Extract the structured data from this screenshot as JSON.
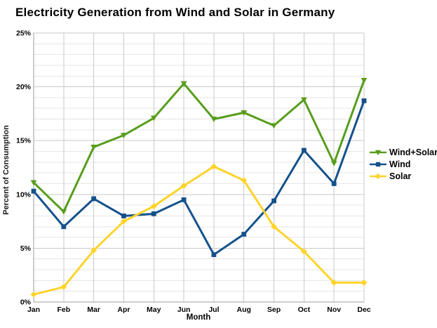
{
  "chart_data": {
    "type": "line",
    "title": "Electricity Generation from Wind and Solar in Germany",
    "xlabel": "Month",
    "ylabel": "Percent of Consumption",
    "categories": [
      "Jan",
      "Feb",
      "Mar",
      "Apr",
      "May",
      "Jun",
      "Jul",
      "Aug",
      "Sep",
      "Oct",
      "Nov",
      "Dec"
    ],
    "y_ticks": [
      "0%",
      "5%",
      "10%",
      "15%",
      "20%",
      "25%"
    ],
    "ylim": [
      0,
      25
    ],
    "y_major_step": 5,
    "y_minor_step": 1,
    "grid": "on",
    "legend_position": "right",
    "series": [
      {
        "name": "Wind+Solar",
        "color": "#579D1C",
        "marker": "triangle",
        "values": [
          11.1,
          8.4,
          14.4,
          15.5,
          17.1,
          20.3,
          17.0,
          17.6,
          16.4,
          18.8,
          12.9,
          20.6
        ]
      },
      {
        "name": "Wind",
        "color": "#14518B",
        "marker": "square",
        "values": [
          10.3,
          7.0,
          9.6,
          8.0,
          8.2,
          9.5,
          4.4,
          6.3,
          9.4,
          14.1,
          11.0,
          18.7
        ]
      },
      {
        "name": "Solar",
        "color": "#FFD32B",
        "marker": "diamond",
        "values": [
          0.7,
          1.4,
          4.8,
          7.5,
          8.9,
          10.8,
          12.6,
          11.3,
          7.0,
          4.7,
          1.8,
          1.8
        ]
      }
    ],
    "colors": {
      "minor_gridline": "#E5E5E5",
      "major_gridline": "#C9C9C9",
      "month_gridline": "#C9C9C9",
      "axis_line": "#9C9C9C",
      "text": "#000000",
      "background": "#FFFFFF"
    }
  }
}
